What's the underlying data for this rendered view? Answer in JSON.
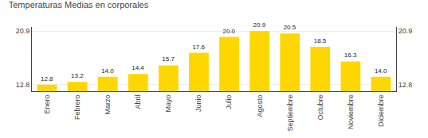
{
  "chart_data": {
    "type": "bar",
    "title": "Temperaturas Medias en corporales",
    "categories": [
      "Enero",
      "Febrero",
      "Marzo",
      "Abril",
      "Mayo",
      "Junio",
      "Julio",
      "Agosto",
      "Septiembre",
      "Octubre",
      "Noviembre",
      "Diciembre"
    ],
    "values": [
      12.8,
      13.2,
      14.0,
      14.4,
      15.7,
      17.6,
      20.0,
      20.9,
      20.5,
      18.5,
      16.3,
      14.0
    ],
    "value_labels": [
      "12.8",
      "13.2",
      "14.0",
      "14.4",
      "15.7",
      "17.6",
      "20.0",
      "20.9",
      "20.5",
      "18.5",
      "16.3",
      "14.0"
    ],
    "data_labels": true,
    "color": "#FFD700",
    "ylim": [
      11.8,
      21.5
    ],
    "yticks": [
      12.8,
      20.9
    ],
    "y2lim": [
      11.8,
      21.5
    ],
    "y2ticks": [
      12.8,
      20.9
    ],
    "grid": true
  }
}
